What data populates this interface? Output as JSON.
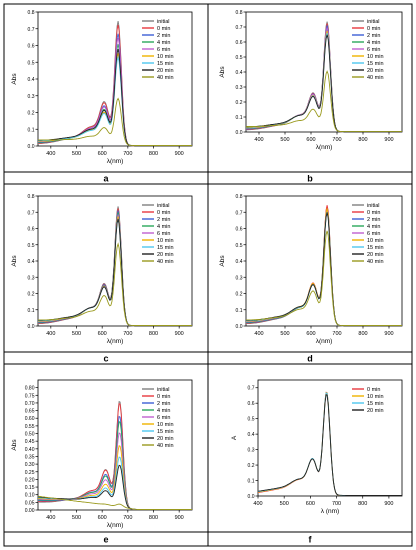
{
  "series_colors": {
    "initial": "#808080",
    "0 min": "#e8393f",
    "2 min": "#3d5fd6",
    "4 min": "#2aa85a",
    "6 min": "#c060d0",
    "10 min": "#f0b400",
    "15 min": "#4ec8f0",
    "20 min": "#222222",
    "40 min": "#9a9a1e"
  },
  "chart_data": [
    {
      "type": "line",
      "panel_label": "a",
      "xlabel": "λ(nm)",
      "ylabel": "Abs",
      "xlim": [
        350,
        950
      ],
      "ylim": [
        0,
        0.8
      ],
      "xticks": [
        400,
        500,
        600,
        700,
        800,
        900
      ],
      "yticks": [
        0.0,
        0.1,
        0.2,
        0.3,
        0.4,
        0.5,
        0.6,
        0.7,
        0.8
      ],
      "peak_x": 662,
      "series": [
        {
          "name": "initial",
          "peak": 0.75
        },
        {
          "name": "0 min",
          "peak": 0.73
        },
        {
          "name": "2 min",
          "peak": 0.68
        },
        {
          "name": "4 min",
          "peak": 0.62
        },
        {
          "name": "6 min",
          "peak": 0.66
        },
        {
          "name": "10 min",
          "peak": 0.57
        },
        {
          "name": "15 min",
          "peak": 0.55
        },
        {
          "name": "20 min",
          "peak": 0.6
        },
        {
          "name": "40 min",
          "peak": 0.31
        }
      ]
    },
    {
      "type": "line",
      "panel_label": "b",
      "xlabel": "λ(nm)",
      "ylabel": "Abs",
      "xlim": [
        350,
        950
      ],
      "ylim": [
        0,
        0.8
      ],
      "xticks": [
        400,
        500,
        600,
        700,
        800,
        900
      ],
      "yticks": [
        0.0,
        0.1,
        0.2,
        0.3,
        0.4,
        0.5,
        0.6,
        0.7,
        0.8
      ],
      "peak_x": 662,
      "series": [
        {
          "name": "initial",
          "peak": 0.74
        },
        {
          "name": "0 min",
          "peak": 0.73
        },
        {
          "name": "2 min",
          "peak": 0.72
        },
        {
          "name": "4 min",
          "peak": 0.7
        },
        {
          "name": "6 min",
          "peak": 0.71
        },
        {
          "name": "10 min",
          "peak": 0.69
        },
        {
          "name": "15 min",
          "peak": 0.68
        },
        {
          "name": "20 min",
          "peak": 0.67
        },
        {
          "name": "40 min",
          "peak": 0.43
        }
      ]
    },
    {
      "type": "line",
      "panel_label": "c",
      "xlabel": "λ(nm)",
      "ylabel": "Abs",
      "xlim": [
        350,
        950
      ],
      "ylim": [
        0,
        0.8
      ],
      "xticks": [
        400,
        500,
        600,
        700,
        800,
        900
      ],
      "yticks": [
        0.0,
        0.1,
        0.2,
        0.3,
        0.4,
        0.5,
        0.6,
        0.7,
        0.8
      ],
      "peak_x": 662,
      "series": [
        {
          "name": "initial",
          "peak": 0.74
        },
        {
          "name": "0 min",
          "peak": 0.73
        },
        {
          "name": "2 min",
          "peak": 0.72
        },
        {
          "name": "4 min",
          "peak": 0.71
        },
        {
          "name": "6 min",
          "peak": 0.7
        },
        {
          "name": "10 min",
          "peak": 0.69
        },
        {
          "name": "15 min",
          "peak": 0.68
        },
        {
          "name": "20 min",
          "peak": 0.68
        },
        {
          "name": "40 min",
          "peak": 0.53
        }
      ]
    },
    {
      "type": "line",
      "panel_label": "d",
      "xlabel": "λ(nm)",
      "ylabel": "Abs",
      "xlim": [
        350,
        950
      ],
      "ylim": [
        0,
        0.8
      ],
      "xticks": [
        400,
        500,
        600,
        700,
        800,
        900
      ],
      "yticks": [
        0.0,
        0.1,
        0.2,
        0.3,
        0.4,
        0.5,
        0.6,
        0.7,
        0.8
      ],
      "peak_x": 662,
      "series": [
        {
          "name": "initial",
          "peak": 0.74
        },
        {
          "name": "0 min",
          "peak": 0.75
        },
        {
          "name": "2 min",
          "peak": 0.73
        },
        {
          "name": "4 min",
          "peak": 0.72
        },
        {
          "name": "6 min",
          "peak": 0.73
        },
        {
          "name": "10 min",
          "peak": 0.74
        },
        {
          "name": "15 min",
          "peak": 0.72
        },
        {
          "name": "20 min",
          "peak": 0.72
        },
        {
          "name": "40 min",
          "peak": 0.61
        }
      ]
    },
    {
      "type": "line",
      "panel_label": "e",
      "xlabel": "λ(nm)",
      "ylabel": "Abs",
      "xlim": [
        350,
        950
      ],
      "ylim": [
        0,
        0.85
      ],
      "xticks": [
        400,
        500,
        600,
        700,
        800,
        900
      ],
      "yticks": [
        0.0,
        0.05,
        0.1,
        0.15,
        0.2,
        0.25,
        0.3,
        0.35,
        0.4,
        0.45,
        0.5,
        0.55,
        0.6,
        0.65,
        0.7,
        0.75,
        0.8
      ],
      "peak_x": 668,
      "series": [
        {
          "name": "initial",
          "peak": 0.75
        },
        {
          "name": "0 min",
          "peak": 0.74
        },
        {
          "name": "2 min",
          "peak": 0.66
        },
        {
          "name": "4 min",
          "peak": 0.63
        },
        {
          "name": "6 min",
          "peak": 0.56
        },
        {
          "name": "10 min",
          "peak": 0.48
        },
        {
          "name": "15 min",
          "peak": 0.41
        },
        {
          "name": "20 min",
          "peak": 0.36
        },
        {
          "name": "40 min",
          "peak": 0.11
        }
      ]
    },
    {
      "type": "line",
      "panel_label": "f",
      "xlabel": "λ (nm)",
      "ylabel": "A",
      "xlim": [
        400,
        950
      ],
      "ylim": [
        0,
        0.75
      ],
      "xticks": [
        400,
        500,
        600,
        700,
        800,
        900
      ],
      "yticks": [
        0.0,
        0.1,
        0.2,
        0.3,
        0.4,
        0.5,
        0.6,
        0.7
      ],
      "peak_x": 662,
      "series": [
        {
          "name": "0 min",
          "peak": 0.68
        },
        {
          "name": "10 min",
          "peak": 0.68
        },
        {
          "name": "15 min",
          "peak": 0.68
        },
        {
          "name": "20 min",
          "peak": 0.67
        }
      ]
    }
  ]
}
